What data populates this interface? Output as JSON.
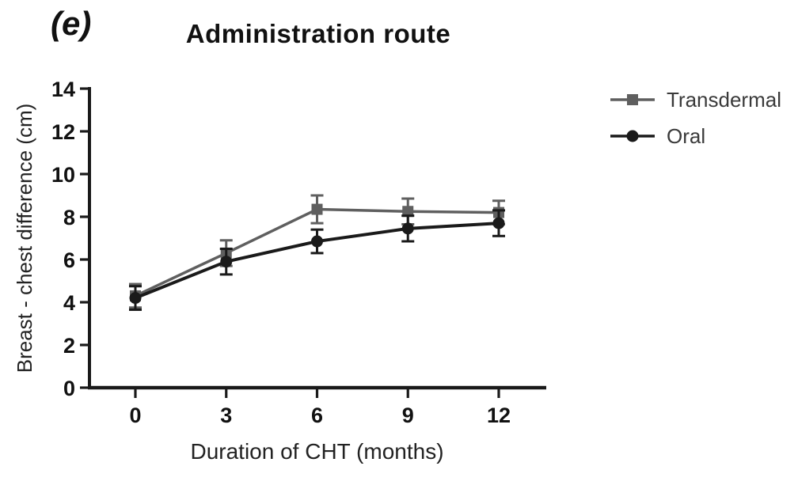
{
  "panel_label": "(e)",
  "chart_data": {
    "type": "line",
    "title": "Administration route",
    "xlabel": "Duration of CHT (months)",
    "ylabel": "Breast - chest difference (cm)",
    "x": [
      0,
      3,
      6,
      9,
      12
    ],
    "xticks": [
      "0",
      "3",
      "6",
      "9",
      "12"
    ],
    "yticks": [
      "0",
      "2",
      "4",
      "6",
      "8",
      "10",
      "12",
      "14"
    ],
    "ytick_values": [
      0,
      2,
      4,
      6,
      8,
      10,
      12,
      14
    ],
    "xlim": [
      0,
      12
    ],
    "ylim": [
      0,
      14
    ],
    "grid": false,
    "legend_position": "right",
    "error_bars": true,
    "series": [
      {
        "name": "Transdermal",
        "marker": "square",
        "color": "#5f5f5f",
        "values": [
          4.3,
          6.3,
          8.35,
          8.25,
          8.2
        ],
        "errors": [
          0.55,
          0.6,
          0.65,
          0.6,
          0.55
        ]
      },
      {
        "name": "Oral",
        "marker": "circle",
        "color": "#1a1a1a",
        "values": [
          4.2,
          5.9,
          6.85,
          7.45,
          7.7
        ],
        "errors": [
          0.55,
          0.6,
          0.55,
          0.6,
          0.6
        ]
      }
    ]
  },
  "colors": {
    "axis": "#1a1a1a",
    "tick_label": "#111111",
    "transdermal": "#5f5f5f",
    "oral": "#1a1a1a"
  },
  "legend": {
    "items": [
      {
        "label": "Transdermal",
        "marker": "square-marker-icon",
        "color": "#5f5f5f"
      },
      {
        "label": "Oral",
        "marker": "circle-marker-icon",
        "color": "#1a1a1a"
      }
    ]
  }
}
